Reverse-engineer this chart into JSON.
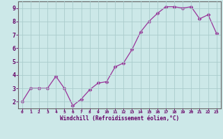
{
  "x": [
    0,
    1,
    2,
    3,
    4,
    5,
    6,
    7,
    8,
    9,
    10,
    11,
    12,
    13,
    14,
    15,
    16,
    17,
    18,
    19,
    20,
    21,
    22,
    23
  ],
  "y": [
    2,
    3,
    3,
    3,
    3.9,
    3,
    1.7,
    2.2,
    2.9,
    3.4,
    3.5,
    4.6,
    4.9,
    5.9,
    7.2,
    8.0,
    8.6,
    9.1,
    9.1,
    9.0,
    9.1,
    8.2,
    8.5,
    7.1
  ],
  "line_color": "#993399",
  "marker": "D",
  "marker_size": 2.5,
  "bg_color": "#cce8e8",
  "grid_color": "#aacccc",
  "xlabel": "Windchill (Refroidissement éolien,°C)",
  "xlabel_color": "#660066",
  "tick_color": "#660066",
  "axis_color": "#666666",
  "xlim": [
    -0.5,
    23.5
  ],
  "ylim": [
    1.5,
    9.5
  ],
  "yticks": [
    2,
    3,
    4,
    5,
    6,
    7,
    8,
    9
  ],
  "xticks": [
    0,
    1,
    2,
    3,
    4,
    5,
    6,
    7,
    8,
    9,
    10,
    11,
    12,
    13,
    14,
    15,
    16,
    17,
    18,
    19,
    20,
    21,
    22,
    23
  ]
}
